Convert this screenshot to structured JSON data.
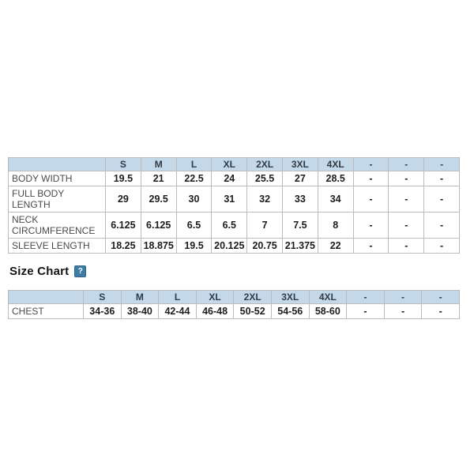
{
  "colors": {
    "header_bg": "#c3d8e8",
    "header_text": "#323c46",
    "cell_text": "#1d1d1d",
    "label_text": "#4a4a4a",
    "table_border": "#bcbcbc",
    "help_icon_bg": "#3d7ca4",
    "help_icon_border": "#2e6488",
    "help_icon_text": "#ffffff",
    "page_bg": "#ffffff"
  },
  "spec_table": {
    "size_headers": [
      "S",
      "M",
      "L",
      "XL",
      "2XL",
      "3XL",
      "4XL",
      "-",
      "-",
      "-"
    ],
    "rows": [
      {
        "label": "BODY WIDTH",
        "values": [
          "19.5",
          "21",
          "22.5",
          "24",
          "25.5",
          "27",
          "28.5",
          "-",
          "-",
          "-"
        ]
      },
      {
        "label": "FULL BODY LENGTH",
        "values": [
          "29",
          "29.5",
          "30",
          "31",
          "32",
          "33",
          "34",
          "-",
          "-",
          "-"
        ]
      },
      {
        "label": "NECK CIRCUMFERENCE",
        "values": [
          "6.125",
          "6.125",
          "6.5",
          "6.5",
          "7",
          "7.5",
          "8",
          "-",
          "-",
          "-"
        ]
      },
      {
        "label": "SLEEVE LENGTH",
        "values": [
          "18.25",
          "18.875",
          "19.5",
          "20.125",
          "20.75",
          "21.375",
          "22",
          "-",
          "-",
          "-"
        ]
      }
    ]
  },
  "size_chart_section": {
    "heading": "Size Chart",
    "help_icon": "?",
    "table": {
      "size_headers": [
        "S",
        "M",
        "L",
        "XL",
        "2XL",
        "3XL",
        "4XL",
        "-",
        "-",
        "-"
      ],
      "rows": [
        {
          "label": "CHEST",
          "values": [
            "34-36",
            "38-40",
            "42-44",
            "46-48",
            "50-52",
            "54-56",
            "58-60",
            "-",
            "-",
            "-"
          ]
        }
      ]
    }
  }
}
